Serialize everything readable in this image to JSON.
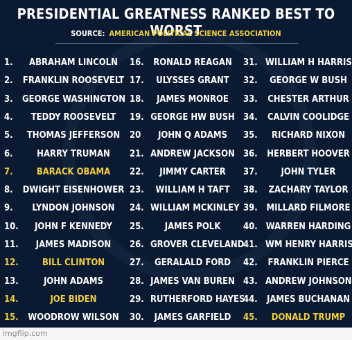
{
  "title": "PRESIDENTIAL GREATNESS RANKED BEST TO WORST",
  "source_label": "SOURCE:",
  "source_value": "AMERICAN POLITICAL SCIENCE ASSOCIATION",
  "highlight_color": "#f2cf3b",
  "text_color": "#ffffff",
  "background_color": "#0a1a33",
  "columns": [
    [
      {
        "num": "1.",
        "name": "ABRAHAM LINCOLN"
      },
      {
        "num": "2.",
        "name": "FRANKLIN ROOSEVELT"
      },
      {
        "num": "3.",
        "name": "GEORGE WASHINGTON"
      },
      {
        "num": "4.",
        "name": "TEDDY ROOSEVELT"
      },
      {
        "num": "5.",
        "name": "THOMAS JEFFERSON"
      },
      {
        "num": "6.",
        "name": "HARRY TRUMAN"
      },
      {
        "num": "7.",
        "name": "BARACK OBAMA",
        "highlight": true
      },
      {
        "num": "8.",
        "name": "DWIGHT EISENHOWER"
      },
      {
        "num": "9.",
        "name": "LYNDON JOHNSON"
      },
      {
        "num": "10.",
        "name": "JOHN F KENNEDY"
      },
      {
        "num": "11.",
        "name": "JAMES MADISON"
      },
      {
        "num": "12.",
        "name": "BILL CLINTON",
        "highlight": true
      },
      {
        "num": "13.",
        "name": "JOHN ADAMS"
      },
      {
        "num": "14.",
        "name": "JOE BIDEN",
        "highlight": true
      },
      {
        "num": "15.",
        "name": "WOODROW WILSON",
        "highlight_num": true
      }
    ],
    [
      {
        "num": "16.",
        "name": "RONALD REAGAN"
      },
      {
        "num": "17.",
        "name": "ULYSSES GRANT"
      },
      {
        "num": "18.",
        "name": "JAMES MONROE"
      },
      {
        "num": "19.",
        "name": "GEORGE HW BUSH"
      },
      {
        "num": "20",
        "name": "JOHN Q ADAMS"
      },
      {
        "num": "21.",
        "name": "ANDREW JACKSON"
      },
      {
        "num": "22.",
        "name": "JIMMY CARTER"
      },
      {
        "num": "23.",
        "name": "WILLIAM H TAFT"
      },
      {
        "num": "24.",
        "name": "WILLIAM MCKINLEY"
      },
      {
        "num": "25.",
        "name": "JAMES POLK"
      },
      {
        "num": "26.",
        "name": "GROVER CLEVELAND"
      },
      {
        "num": "27.",
        "name": "GERALALD FORD"
      },
      {
        "num": "28.",
        "name": "JAMES VAN BUREN"
      },
      {
        "num": "29.",
        "name": "RUTHERFORD HAYES"
      },
      {
        "num": "30.",
        "name": "JAMES GARFIELD"
      }
    ],
    [
      {
        "num": "31.",
        "name": "WILLIAM H HARRISON"
      },
      {
        "num": "32.",
        "name": "GEORGE W BUSH"
      },
      {
        "num": "33.",
        "name": "CHESTER ARTHUR"
      },
      {
        "num": "34.",
        "name": "CALVIN COOLIDGE"
      },
      {
        "num": "35.",
        "name": "RICHARD NIXON"
      },
      {
        "num": "36.",
        "name": "HERBERT HOOVER"
      },
      {
        "num": "37.",
        "name": "JOHN TYLER"
      },
      {
        "num": "38.",
        "name": "ZACHARY TAYLOR"
      },
      {
        "num": "39.",
        "name": "MILLARD FILMORE"
      },
      {
        "num": "40.",
        "name": "WARREN HARDING"
      },
      {
        "num": "41.",
        "name": "WM HENRY HARRISON"
      },
      {
        "num": "42.",
        "name": "FRANKLIN PIERCE"
      },
      {
        "num": "43.",
        "name": "ANDREW JOHNSON"
      },
      {
        "num": "44.",
        "name": "JAMES BUCHANAN"
      },
      {
        "num": "45.",
        "name": "DONALD TRUMP",
        "highlight": true
      }
    ]
  ],
  "footer": "imgflip.com"
}
